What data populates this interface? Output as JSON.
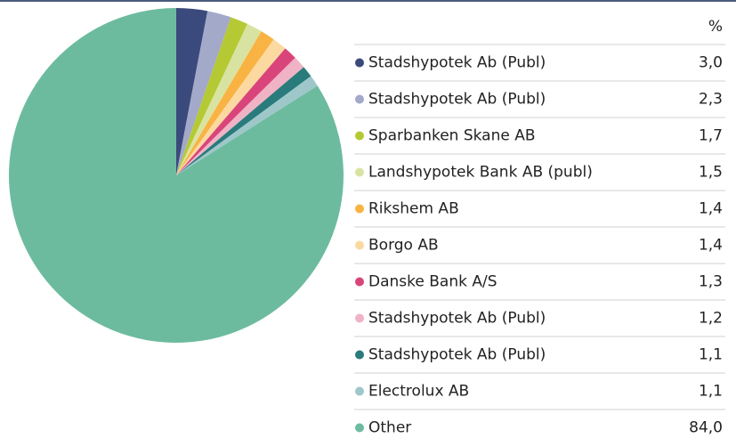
{
  "chart_data": {
    "type": "pie",
    "value_header": "%",
    "categories": [
      "Stadshypotek Ab (Publ)",
      "Stadshypotek Ab (Publ)",
      "Sparbanken Skane AB",
      "Landshypotek Bank AB (publ)",
      "Rikshem AB",
      "Borgo AB",
      "Danske Bank A/S",
      "Stadshypotek Ab (Publ)",
      "Stadshypotek Ab (Publ)",
      "Electrolux AB",
      "Other"
    ],
    "values": [
      3.0,
      2.3,
      1.7,
      1.5,
      1.4,
      1.4,
      1.3,
      1.2,
      1.1,
      1.1,
      84.0
    ],
    "value_labels": [
      "3,0",
      "2,3",
      "1,7",
      "1,5",
      "1,4",
      "1,4",
      "1,3",
      "1,2",
      "1,1",
      "1,1",
      "84,0"
    ],
    "colors": [
      "#3b4a7c",
      "#a3a9c9",
      "#b5c934",
      "#d9e3a1",
      "#f9b342",
      "#fcd9a1",
      "#d9457a",
      "#f0b3c6",
      "#2a7b7b",
      "#9ec7c9",
      "#6dbb9f"
    ]
  }
}
